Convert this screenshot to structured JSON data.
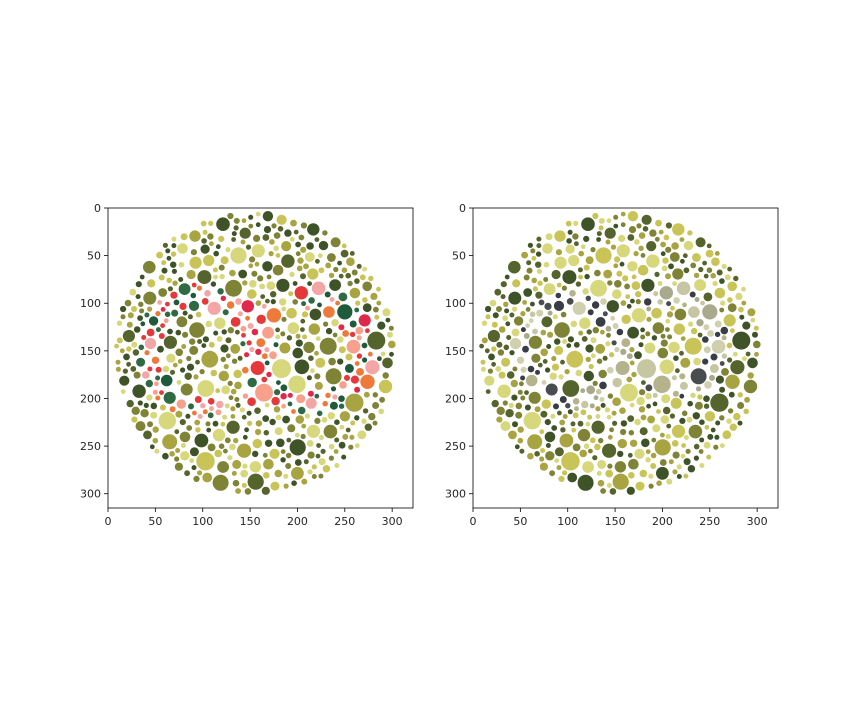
{
  "chart_data": [
    {
      "type": "image",
      "title": "",
      "xlabel": "",
      "ylabel": "",
      "xlim": [
        0,
        322
      ],
      "ylim": [
        315,
        0
      ],
      "x_ticks": [
        0,
        50,
        100,
        150,
        200,
        250,
        300
      ],
      "y_ticks": [
        0,
        50,
        100,
        150,
        200,
        250,
        300
      ],
      "grid": false,
      "content": "dot-pattern-plate",
      "palette": {
        "background": [
          "#c9c457",
          "#a7a441",
          "#7e8336",
          "#55632d",
          "#3f5328",
          "#d7d77b"
        ],
        "figure": [
          "#e0284a",
          "#e5383a",
          "#f7a08c",
          "#f4a6a6",
          "#ee7a3a",
          "#1f5a3a",
          "#2e6b45"
        ]
      }
    },
    {
      "type": "image",
      "title": "",
      "xlabel": "",
      "ylabel": "",
      "xlim": [
        0,
        322
      ],
      "ylim": [
        315,
        0
      ],
      "x_ticks": [
        0,
        50,
        100,
        150,
        200,
        250,
        300
      ],
      "y_ticks": [
        0,
        50,
        100,
        150,
        200,
        250,
        300
      ],
      "grid": false,
      "content": "dot-pattern-plate",
      "palette": {
        "background": [
          "#c9c457",
          "#a7a441",
          "#7e8336",
          "#55632d",
          "#3f5328",
          "#d7d77b"
        ],
        "figure": [
          "#c7c6a3",
          "#b5b38c",
          "#a9a98e",
          "#4a4d4f",
          "#3a3d45",
          "#d0cfae"
        ]
      }
    }
  ]
}
